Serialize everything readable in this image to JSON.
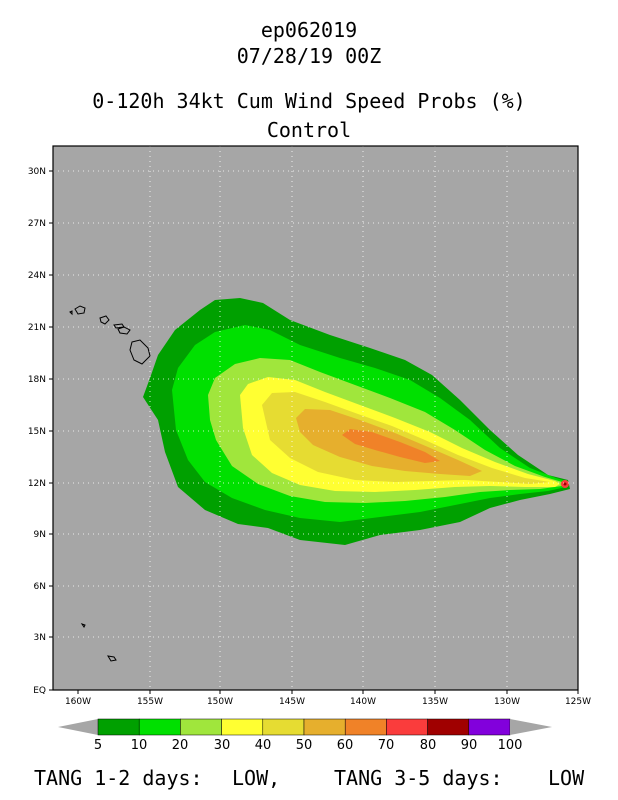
{
  "header": {
    "storm_id": "ep062019",
    "datetime": "07/28/19 00Z",
    "product": "0-120h 34kt Cum Wind Speed Probs (%)",
    "run": "Control"
  },
  "map": {
    "lon_range": [
      -162,
      -125
    ],
    "lat_range": [
      0,
      31
    ],
    "lon_ticks": [
      "160W",
      "155W",
      "150W",
      "145W",
      "140W",
      "135W",
      "130W",
      "125W"
    ],
    "lat_ticks": [
      "EQ",
      "3N",
      "6N",
      "9N",
      "12N",
      "15N",
      "18N",
      "21N",
      "24N",
      "27N",
      "30N"
    ],
    "ocean_color": "#a6a6a6",
    "storm_position": {
      "lon": -126.0,
      "lat": 12.0
    }
  },
  "colorbar": {
    "labels": [
      "5",
      "10",
      "20",
      "30",
      "40",
      "50",
      "60",
      "70",
      "80",
      "90",
      "100"
    ],
    "colors": [
      "#00a000",
      "#00e000",
      "#a0e63c",
      "#ffff32",
      "#e6dc32",
      "#e6af2d",
      "#f08228",
      "#fa3c3c",
      "#a00000",
      "#8200dc"
    ]
  },
  "probability_contours": [
    {
      "level": 5,
      "color": "#00a000",
      "label": "5-10%"
    },
    {
      "level": 10,
      "color": "#00e000",
      "label": "10-20%"
    },
    {
      "level": 20,
      "color": "#a0e63c",
      "label": "20-30%"
    },
    {
      "level": 30,
      "color": "#ffff32",
      "label": "30-40%"
    },
    {
      "level": 40,
      "color": "#e6dc32",
      "label": "40-50%"
    },
    {
      "level": 50,
      "color": "#e6af2d",
      "label": "50-60%"
    },
    {
      "level": 60,
      "color": "#f08228",
      "label": "60-70%"
    }
  ],
  "footer": {
    "tang_1_2_label": "TANG 1-2 days:",
    "tang_1_2_value": "LOW,",
    "tang_3_5_label": "TANG 3-5 days:",
    "tang_3_5_value": "LOW"
  }
}
